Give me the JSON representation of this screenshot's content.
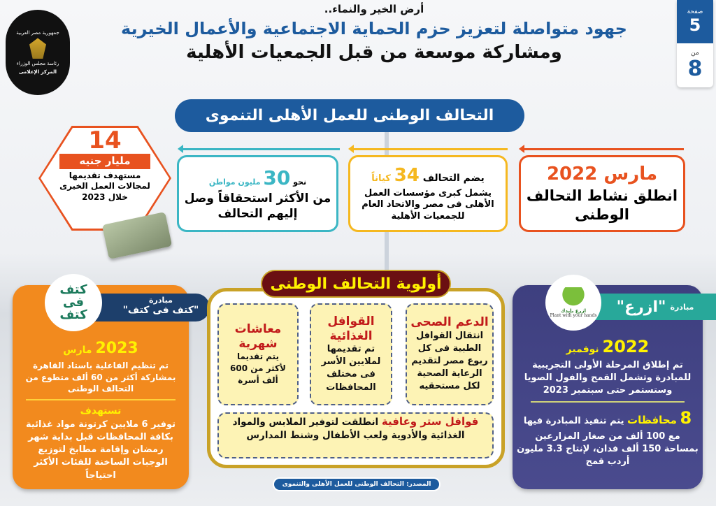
{
  "page_badge": {
    "page_label": "صفحة",
    "page": "5",
    "of_label": "من",
    "total": "8"
  },
  "logo": {
    "top_text": "جمهورية مصر العربية",
    "middle_text": "رئاسة مجلس الوزراء",
    "bottom_text": "المركز الإعلامى"
  },
  "header": {
    "kicker": "أرض الخير والنماء..",
    "title_line1": "جهود متواصلة لتعزيز حزم الحماية الاجتماعية والأعمال الخيرية",
    "title_line2": "ومشاركة موسعة من قبل الجمعيات الأهلية"
  },
  "banner": "التحالف الوطنى للعمل الأهلى التنموى",
  "timeline": [
    {
      "date": "مارس 2022",
      "text": "انطلق نشاط التحالف الوطنى",
      "color": "#e8521f"
    },
    {
      "prefix": "يضم التحالف",
      "number": "34",
      "unit": "كياناً",
      "text": "يشمل كبرى مؤسسات العمل الأهلى فى مصر والاتحاد العام للجمعيات الأهلية",
      "color": "#f5b820"
    },
    {
      "prefix": "نحو",
      "number": "30",
      "unit": "مليون مواطن",
      "text": "من الأكثر استحقاقاً وصل إليهم التحالف",
      "color": "#3bb6c4"
    }
  ],
  "budget": {
    "number": "14",
    "unit": "مليار جنيه",
    "text1": "مستهدف تقديمها",
    "text2": "لمجالات العمل الخيرى",
    "text3": "خلال 2023",
    "icon": "money-stack-icon"
  },
  "priorities": {
    "title": "أولوية التحالف الوطنى",
    "boxes": [
      {
        "title": "الدعم الصحى",
        "text": "انتقال القوافل الطبية فى كل ربوع مصر لتقديم الرعاية الصحية لكل مستحقيه"
      },
      {
        "title": "القوافل الغذائية",
        "text": "تم تقديمها لملايين الأسر فى مختلف المحافظات"
      },
      {
        "title": "معاشات شهرية",
        "text": "يتم تقديما لأكثر من 600 ألف أسرة"
      }
    ],
    "wide": {
      "title": "قوافل ستر وعافية",
      "text": "انطلقت لتوفير الملابس والمواد الغذائية والأدوية ولعب الأطفال وشنط المدارس"
    }
  },
  "source": "المصدر: التحالف الوطنى للعمل الأهلى والتنموى",
  "left_initiative": {
    "label": "مبادرة",
    "name": "\"كتف فى كتف\"",
    "logo_text": "كتف فى كتف",
    "date_month": "مارس",
    "date_year": "2023",
    "text1": "تم تنظيم الفاعلية باستاد القاهرة بمشاركة أكثر من 60 ألف متطوع من التحالف الوطنى",
    "target_label": "تستهدف",
    "text2": "توفير 6 ملايين كرتونة مواد غذائية بكافة المحافظات قبل بداية شهر رمضان وإقامة مطابخ لتوزيع الوجبات الساخنة للفئات الأكثر احتياجاً"
  },
  "right_initiative": {
    "label": "مبادرة",
    "name": "\"ازرع\"",
    "logo_text": "ازرع بإيدك",
    "logo_caption": "Plant with your hands",
    "date_month": "نوفمبر",
    "date_year": "2022",
    "text1": "تم إطلاق المرحلة الأولى التجريبية للمبادرة وتشمل القمح والفول الصويا وستستمر حتى سبتمبر 2023",
    "count": "8",
    "count_label": "محافظات",
    "text2": "يتم تنفيذ المبادرة فيها مع 100 ألف من صغار المزارعين بمساحة 150 ألف فدان، لإنتاج 3.3 مليون أردب قمح"
  },
  "colors": {
    "blue": "#1d5b9e",
    "orange": "#f28a1e",
    "purple": "#3e3f7f",
    "maroon": "#6b0f12",
    "gold": "#c9a227",
    "yellow": "#fff200"
  }
}
